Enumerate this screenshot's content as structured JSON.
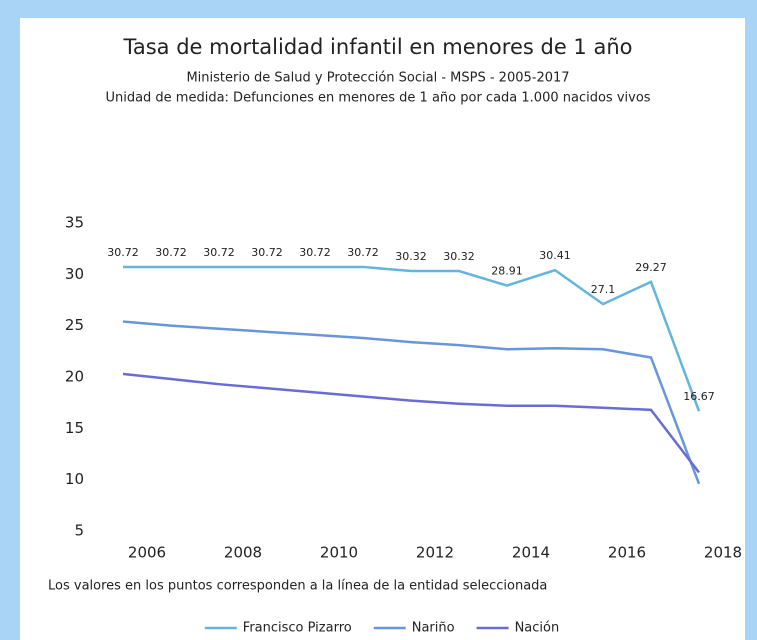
{
  "chart_data": {
    "type": "line",
    "title": "Tasa de mortalidad infantil en menores de 1 año",
    "subtitle": "Ministerio de Salud y Protección Social - MSPS - 2005-2017",
    "unit_note": "Unidad de medida: Defunciones en menores de 1 año por cada 1.000 nacidos vivos",
    "footnote": "Los valores en los puntos corresponden a la línea de la entidad seleccionada",
    "x": [
      2005.5,
      2006.5,
      2007.5,
      2008.5,
      2009.5,
      2010.5,
      2011.5,
      2012.5,
      2013.5,
      2014.5,
      2015.5,
      2016.5,
      2017.5
    ],
    "series": [
      {
        "name": "Francisco Pizarro",
        "color": "#63b5de",
        "data_labels": true,
        "values": [
          30.72,
          30.72,
          30.72,
          30.72,
          30.72,
          30.72,
          30.32,
          30.32,
          28.91,
          30.41,
          27.1,
          29.27,
          16.67
        ]
      },
      {
        "name": "Nariño",
        "color": "#6796dc",
        "data_labels": false,
        "values": [
          25.4,
          25.0,
          24.7,
          24.4,
          24.1,
          23.8,
          23.4,
          23.1,
          22.7,
          22.8,
          22.7,
          21.9,
          9.6
        ]
      },
      {
        "name": "Nación",
        "color": "#6a6cd6",
        "data_labels": false,
        "values": [
          20.3,
          19.8,
          19.3,
          18.9,
          18.5,
          18.1,
          17.7,
          17.4,
          17.2,
          17.2,
          17.0,
          16.8,
          10.7
        ]
      }
    ],
    "xlim": [
      2005,
      2018
    ],
    "xticks": [
      2006,
      2008,
      2010,
      2012,
      2014,
      2016,
      2018
    ],
    "ylim": [
      5,
      35
    ],
    "yticks": [
      5,
      10,
      15,
      20,
      25,
      30,
      35
    ],
    "grid": false,
    "legend": "bottom"
  }
}
